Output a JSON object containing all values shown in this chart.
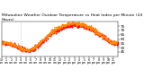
{
  "title": "Milwaukee Weather Outdoor Temperature vs Heat Index per Minute (24 Hours)",
  "title_fontsize": 3.2,
  "title_color": "#000000",
  "bg_color": "#ffffff",
  "plot_bg_color": "#ffffff",
  "line1_color": "#ff0000",
  "line2_color": "#ff8800",
  "ylim": [
    40,
    80
  ],
  "yticks": [
    45,
    50,
    55,
    60,
    65,
    70,
    75
  ],
  "ylabel_fontsize": 3.0,
  "xlabel_fontsize": 2.3,
  "vline_x": 240,
  "vline_color": "#aaaaaa",
  "seed": 42
}
